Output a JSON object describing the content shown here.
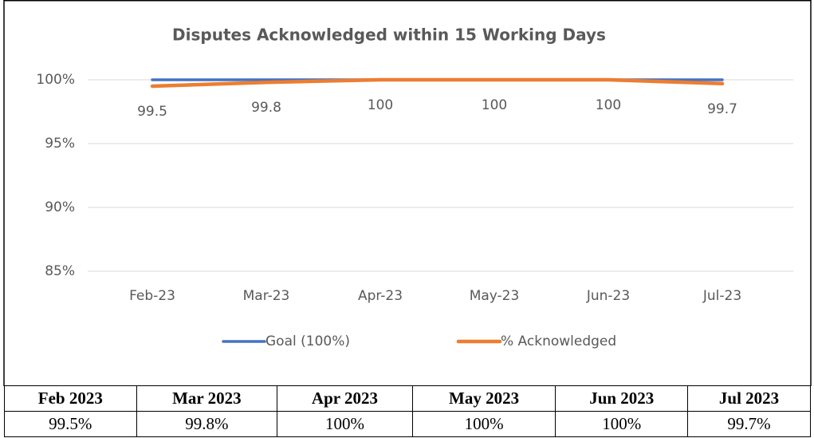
{
  "chart_data": {
    "type": "line",
    "title": "Disputes Acknowledged within 15 Working Days",
    "categories": [
      "Feb-23",
      "Mar-23",
      "Apr-23",
      "May-23",
      "Jun-23",
      "Jul-23"
    ],
    "series": [
      {
        "name": "Goal (100%)",
        "color": "#4472c4",
        "values": [
          100,
          100,
          100,
          100,
          100,
          100
        ]
      },
      {
        "name": "% Acknowledged",
        "color": "#ed7d31",
        "values": [
          99.5,
          99.8,
          100,
          100,
          100,
          99.7
        ]
      }
    ],
    "ylim": [
      85,
      100
    ],
    "yticks": [
      {
        "value": 85,
        "label": "85%"
      },
      {
        "value": 90,
        "label": "90%"
      },
      {
        "value": 95,
        "label": "95%"
      },
      {
        "value": 100,
        "label": "100%"
      }
    ],
    "grid": true,
    "legend": "bottom"
  },
  "table": {
    "header": [
      "Feb 2023",
      "Mar 2023",
      "Apr 2023",
      "May 2023",
      "Jun 2023",
      "Jul 2023"
    ],
    "rows": [
      [
        "99.5%",
        "99.8%",
        "100%",
        "100%",
        "100%",
        "99.7%"
      ]
    ]
  }
}
